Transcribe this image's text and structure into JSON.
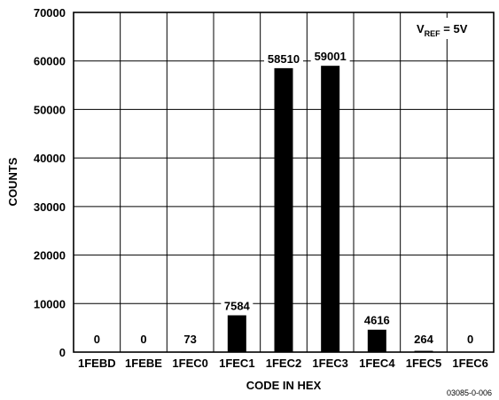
{
  "chart_data": {
    "type": "bar",
    "categories": [
      "1FEBD",
      "1FEBE",
      "1FEC0",
      "1FEC1",
      "1FEC2",
      "1FEC3",
      "1FEC4",
      "1FEC5",
      "1FEC6"
    ],
    "values": [
      0,
      0,
      73,
      7584,
      58510,
      59001,
      4616,
      264,
      0
    ],
    "data_labels": [
      "0",
      "0",
      "73",
      "7584",
      "58510",
      "59001",
      "4616",
      "264",
      "0"
    ],
    "xlabel": "CODE IN HEX",
    "ylabel": "COUNTS",
    "ylim": [
      0,
      70000
    ],
    "yticks": [
      0,
      10000,
      20000,
      30000,
      40000,
      50000,
      60000,
      70000
    ],
    "ytick_labels": [
      "0",
      "10000",
      "20000",
      "30000",
      "40000",
      "50000",
      "60000",
      "70000"
    ],
    "grid": true,
    "annotation": {
      "main": "V",
      "subscript": "REF",
      "rest": " = 5V",
      "placement": "top-right"
    },
    "figure_id": "03085-0-006",
    "colors": {
      "bar": "#000000",
      "grid": "#000000",
      "background": "#ffffff"
    }
  }
}
